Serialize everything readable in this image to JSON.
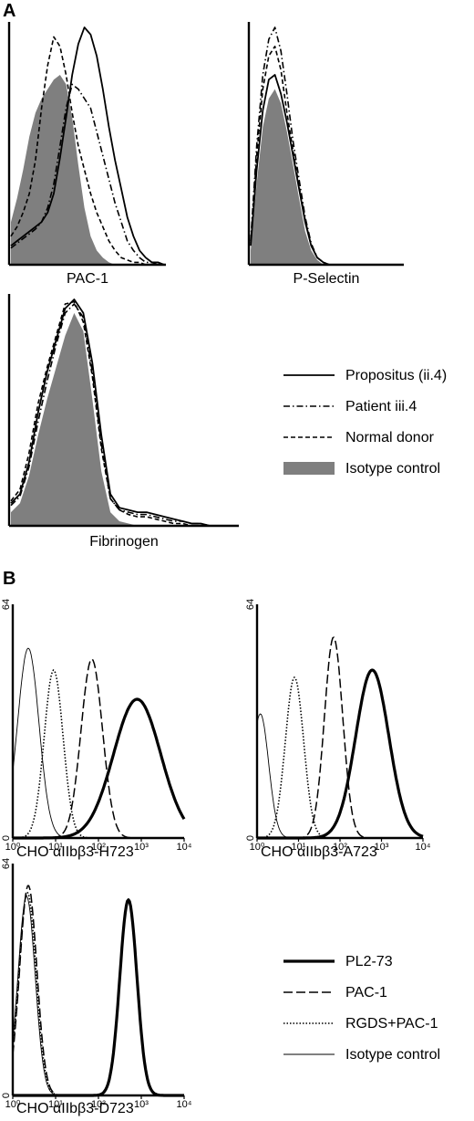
{
  "figure": {
    "panel_a_label": "A",
    "panel_b_label": "B"
  },
  "legend_a": [
    {
      "label": "Propositus (ii.4)",
      "style": "solid"
    },
    {
      "label": "Patient iii.4",
      "style": "dashdot"
    },
    {
      "label": "Normal donor",
      "style": "dashed"
    },
    {
      "label": "Isotype control",
      "style": "filled"
    }
  ],
  "legend_b": [
    {
      "label": "PL2-73",
      "style": "thick"
    },
    {
      "label": "PAC-1",
      "style": "longdash"
    },
    {
      "label": "RGDS+PAC-1",
      "style": "dotted"
    },
    {
      "label": "Isotype control",
      "style": "thin"
    }
  ],
  "colors": {
    "fill": "#7f7f7f",
    "line": "#000000"
  },
  "chart_data": [
    {
      "type": "area",
      "panel": "A",
      "title": "",
      "xlabel": "PAC-1",
      "ylabel": "",
      "x": [
        0,
        4,
        8,
        12,
        16,
        20,
        24,
        28,
        32,
        36,
        40,
        44,
        48,
        52,
        56,
        60,
        64,
        68,
        72,
        76,
        80,
        84,
        88,
        92,
        96,
        100
      ],
      "ylim": [
        0,
        100
      ],
      "series": [
        {
          "name": "Propositus (ii.4)",
          "values": [
            8,
            10,
            12,
            14,
            16,
            18,
            22,
            30,
            45,
            62,
            80,
            93,
            100,
            97,
            88,
            74,
            58,
            44,
            32,
            20,
            12,
            6,
            3,
            1,
            1,
            0
          ]
        },
        {
          "name": "Patient iii.4",
          "values": [
            7,
            9,
            11,
            13,
            15,
            18,
            24,
            34,
            50,
            66,
            76,
            74,
            70,
            66,
            56,
            46,
            36,
            26,
            18,
            10,
            6,
            3,
            1,
            1,
            0,
            0
          ]
        },
        {
          "name": "Normal donor",
          "values": [
            12,
            16,
            22,
            30,
            44,
            66,
            84,
            96,
            92,
            80,
            64,
            50,
            40,
            30,
            22,
            16,
            10,
            6,
            3,
            2,
            1,
            1,
            0,
            0,
            0,
            0
          ]
        },
        {
          "name": "Isotype control",
          "values": [
            18,
            28,
            40,
            54,
            64,
            70,
            74,
            78,
            80,
            76,
            62,
            42,
            24,
            12,
            6,
            3,
            1,
            0,
            0,
            0,
            0,
            0,
            0,
            0,
            0,
            0
          ]
        }
      ]
    },
    {
      "type": "area",
      "panel": "A",
      "title": "",
      "xlabel": "P-Selectin",
      "ylabel": "",
      "x": [
        0,
        4,
        8,
        12,
        16,
        20,
        24,
        28,
        32,
        36,
        40,
        44,
        48,
        52,
        56,
        60,
        64,
        68,
        72,
        76,
        80,
        84,
        88,
        92,
        96,
        100
      ],
      "ylim": [
        0,
        100
      ],
      "series": [
        {
          "name": "Propositus (ii.4)",
          "values": [
            8,
            40,
            65,
            78,
            80,
            72,
            60,
            46,
            32,
            18,
            8,
            3,
            1,
            0,
            0,
            0,
            0,
            0,
            0,
            0,
            0,
            0,
            0,
            0,
            0,
            0
          ]
        },
        {
          "name": "Patient iii.4",
          "values": [
            10,
            50,
            80,
            95,
            100,
            90,
            72,
            52,
            36,
            20,
            9,
            3,
            1,
            0,
            0,
            0,
            0,
            0,
            0,
            0,
            0,
            0,
            0,
            0,
            0,
            0
          ]
        },
        {
          "name": "Normal donor",
          "values": [
            9,
            46,
            74,
            88,
            92,
            82,
            64,
            48,
            33,
            19,
            8,
            3,
            1,
            0,
            0,
            0,
            0,
            0,
            0,
            0,
            0,
            0,
            0,
            0,
            0,
            0
          ]
        },
        {
          "name": "Isotype control",
          "values": [
            6,
            34,
            58,
            70,
            74,
            68,
            56,
            42,
            28,
            14,
            6,
            2,
            0,
            0,
            0,
            0,
            0,
            0,
            0,
            0,
            0,
            0,
            0,
            0,
            0,
            0
          ]
        }
      ]
    },
    {
      "type": "area",
      "panel": "A",
      "title": "",
      "xlabel": "Fibrinogen",
      "ylabel": "",
      "x": [
        0,
        4,
        8,
        12,
        16,
        20,
        24,
        28,
        32,
        36,
        40,
        44,
        48,
        52,
        56,
        60,
        64,
        68,
        72,
        76,
        80,
        84,
        88,
        92,
        96,
        100
      ],
      "ylim": [
        0,
        100
      ],
      "series": [
        {
          "name": "Propositus (ii.4)",
          "values": [
            10,
            14,
            28,
            50,
            68,
            82,
            96,
            100,
            94,
            72,
            40,
            14,
            8,
            7,
            6,
            6,
            5,
            4,
            3,
            2,
            1,
            1,
            0,
            0,
            0,
            0
          ]
        },
        {
          "name": "Patient iii.4",
          "values": [
            9,
            13,
            26,
            46,
            64,
            80,
            94,
            98,
            92,
            68,
            36,
            12,
            7,
            6,
            5,
            5,
            4,
            3,
            2,
            2,
            1,
            1,
            0,
            0,
            0,
            0
          ]
        },
        {
          "name": "Normal donor",
          "values": [
            11,
            16,
            32,
            54,
            70,
            84,
            98,
            99,
            90,
            66,
            34,
            12,
            7,
            5,
            4,
            4,
            3,
            2,
            1,
            1,
            0,
            0,
            0,
            0,
            0,
            0
          ]
        },
        {
          "name": "Isotype control",
          "values": [
            6,
            10,
            22,
            40,
            56,
            70,
            84,
            94,
            86,
            56,
            24,
            6,
            2,
            1,
            0,
            0,
            0,
            0,
            0,
            0,
            0,
            0,
            0,
            0,
            0,
            0
          ]
        }
      ]
    },
    {
      "type": "line",
      "panel": "B",
      "title": "",
      "xlabel": "CHO αIIbβ3-H723",
      "ylabel": "",
      "xscale": "log",
      "xlim": [
        1,
        10000
      ],
      "ylim": [
        0,
        64
      ],
      "xticks": [
        "10⁰",
        "10¹",
        "10²",
        "10³",
        "10⁴"
      ],
      "yticks": [
        "0",
        "64"
      ],
      "series": [
        {
          "name": "PL2-73",
          "peak_x": 800,
          "peak_y": 38,
          "width_decades": 0.55
        },
        {
          "name": "PAC-1",
          "peak_x": 70,
          "peak_y": 49,
          "width_decades": 0.25
        },
        {
          "name": "RGDS+PAC-1",
          "peak_x": 9,
          "peak_y": 46,
          "width_decades": 0.22
        },
        {
          "name": "Isotype control",
          "peak_x": 2.3,
          "peak_y": 52,
          "width_decades": 0.25
        }
      ]
    },
    {
      "type": "line",
      "panel": "B",
      "title": "",
      "xlabel": "CHO αIIbβ3-A723",
      "ylabel": "",
      "xscale": "log",
      "xlim": [
        1,
        10000
      ],
      "ylim": [
        0,
        64
      ],
      "xticks": [
        "10⁰",
        "10¹",
        "10²",
        "10³",
        "10⁴"
      ],
      "yticks": [
        "0",
        "64"
      ],
      "series": [
        {
          "name": "PL2-73",
          "peak_x": 600,
          "peak_y": 46,
          "width_decades": 0.4
        },
        {
          "name": "PAC-1",
          "peak_x": 70,
          "peak_y": 55,
          "width_decades": 0.22
        },
        {
          "name": "RGDS+PAC-1",
          "peak_x": 8,
          "peak_y": 44,
          "width_decades": 0.22
        },
        {
          "name": "Isotype control",
          "peak_x": 1.2,
          "peak_y": 34,
          "width_decades": 0.2
        }
      ]
    },
    {
      "type": "line",
      "panel": "B",
      "title": "",
      "xlabel": "CHO αIIbβ3-D723",
      "ylabel": "",
      "xscale": "log",
      "xlim": [
        1,
        10000
      ],
      "ylim": [
        0,
        64
      ],
      "xticks": [
        "10⁰",
        "10¹",
        "10²",
        "10³",
        "10⁴"
      ],
      "yticks": [
        "0",
        "64"
      ],
      "series": [
        {
          "name": "PL2-73",
          "peak_x": 500,
          "peak_y": 54,
          "width_decades": 0.2
        },
        {
          "name": "PAC-1",
          "peak_x": 2.3,
          "peak_y": 58,
          "width_decades": 0.2
        },
        {
          "name": "RGDS+PAC-1",
          "peak_x": 2.2,
          "peak_y": 56,
          "width_decades": 0.2
        },
        {
          "name": "Isotype control",
          "peak_x": 2.1,
          "peak_y": 55,
          "width_decades": 0.2
        }
      ]
    }
  ]
}
